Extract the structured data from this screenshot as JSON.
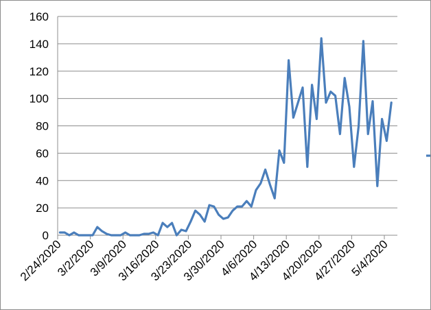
{
  "chart_data": {
    "type": "line",
    "title": "",
    "xlabel": "",
    "ylabel": "",
    "ylim": [
      0,
      160
    ],
    "yticks": [
      0,
      20,
      40,
      60,
      80,
      100,
      120,
      140,
      160
    ],
    "xtick_labels": [
      "2/24/2020",
      "3/2/2020",
      "3/9/2020",
      "3/16/2020",
      "3/23/2020",
      "3/30/2020",
      "4/6/2020",
      "4/13/2020",
      "4/20/2020",
      "4/27/2020",
      "5/4/2020"
    ],
    "grid": "horizontal",
    "legend": "right",
    "series_color": "#4a7ebb",
    "x": [
      "2/24/2020",
      "2/25/2020",
      "2/26/2020",
      "2/27/2020",
      "2/28/2020",
      "2/29/2020",
      "3/1/2020",
      "3/2/2020",
      "3/3/2020",
      "3/4/2020",
      "3/5/2020",
      "3/6/2020",
      "3/7/2020",
      "3/8/2020",
      "3/9/2020",
      "3/10/2020",
      "3/11/2020",
      "3/12/2020",
      "3/13/2020",
      "3/14/2020",
      "3/15/2020",
      "3/16/2020",
      "3/17/2020",
      "3/18/2020",
      "3/19/2020",
      "3/20/2020",
      "3/21/2020",
      "3/22/2020",
      "3/23/2020",
      "3/24/2020",
      "3/25/2020",
      "3/26/2020",
      "3/27/2020",
      "3/28/2020",
      "3/29/2020",
      "3/30/2020",
      "3/31/2020",
      "4/1/2020",
      "4/2/2020",
      "4/3/2020",
      "4/4/2020",
      "4/5/2020",
      "4/6/2020",
      "4/7/2020",
      "4/8/2020",
      "4/9/2020",
      "4/10/2020",
      "4/11/2020",
      "4/12/2020",
      "4/13/2020",
      "4/14/2020",
      "4/15/2020",
      "4/16/2020",
      "4/17/2020",
      "4/18/2020",
      "4/19/2020",
      "4/20/2020",
      "4/21/2020",
      "4/22/2020",
      "4/23/2020",
      "4/24/2020",
      "4/25/2020",
      "4/26/2020",
      "4/27/2020",
      "4/28/2020",
      "4/29/2020",
      "4/30/2020",
      "5/1/2020",
      "5/2/2020",
      "5/3/2020",
      "5/4/2020",
      "5/5/2020"
    ],
    "series": [
      {
        "values": [
          2,
          2,
          0,
          2,
          0,
          0,
          0,
          0,
          6,
          3,
          1,
          0,
          0,
          0,
          2,
          0,
          0,
          0,
          1,
          1,
          2,
          0,
          9,
          6,
          9,
          0,
          4,
          3,
          10,
          18,
          15,
          10,
          22,
          21,
          15,
          12,
          13,
          18,
          21,
          21,
          25,
          21,
          33,
          38,
          48,
          37,
          27,
          62,
          53,
          128,
          86,
          97,
          108,
          50,
          110,
          85,
          144,
          97,
          105,
          102,
          74,
          115,
          94,
          50,
          80,
          142,
          74,
          98,
          36,
          85,
          69,
          97
        ]
      }
    ]
  }
}
